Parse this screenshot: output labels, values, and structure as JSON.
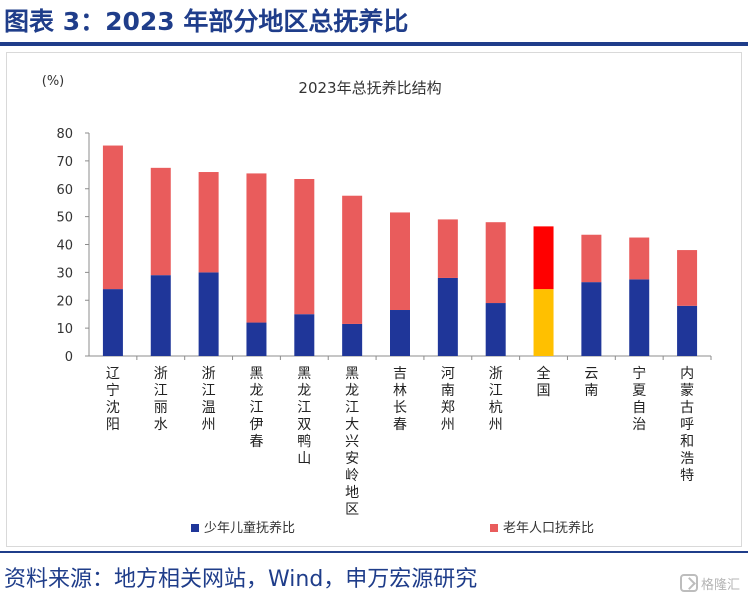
{
  "header": {
    "title": "图表 3：2023 年部分地区总抚养比"
  },
  "footer": {
    "source": "资料来源：地方相关网站，Wind，申万宏源研究",
    "watermark": "格隆汇"
  },
  "chart_data": {
    "type": "bar",
    "stacked": true,
    "title": "2023年总抚养比结构",
    "ylabel": "(%)",
    "ylim": [
      0,
      80
    ],
    "yticks": [
      0,
      10,
      20,
      30,
      40,
      50,
      60,
      70,
      80
    ],
    "grid": false,
    "legend_position": "bottom",
    "categories": [
      "辽宁沈阳",
      "浙江丽水",
      "浙江温州",
      "黑龙江伊春",
      "黑龙江双鸭山",
      "黑龙江大兴安岭地区",
      "吉林长春",
      "河南郑州",
      "浙江杭州",
      "全国",
      "云南",
      "宁夏自治",
      "内蒙古呼和浩特"
    ],
    "highlight_category": "全国",
    "series": [
      {
        "name": "少年儿童抚养比",
        "color": "#1f3699",
        "highlight_color": "#ffc000",
        "values": [
          24,
          29,
          30,
          12,
          15,
          11.5,
          16.5,
          28,
          19,
          24,
          26.5,
          27.5,
          18
        ]
      },
      {
        "name": "老年人口抚养比",
        "color": "#e95c5c",
        "highlight_color": "#ff0000",
        "values": [
          51.5,
          38.5,
          36,
          53.5,
          48.5,
          46,
          35,
          21,
          29,
          22.5,
          17,
          15,
          20
        ]
      }
    ]
  }
}
